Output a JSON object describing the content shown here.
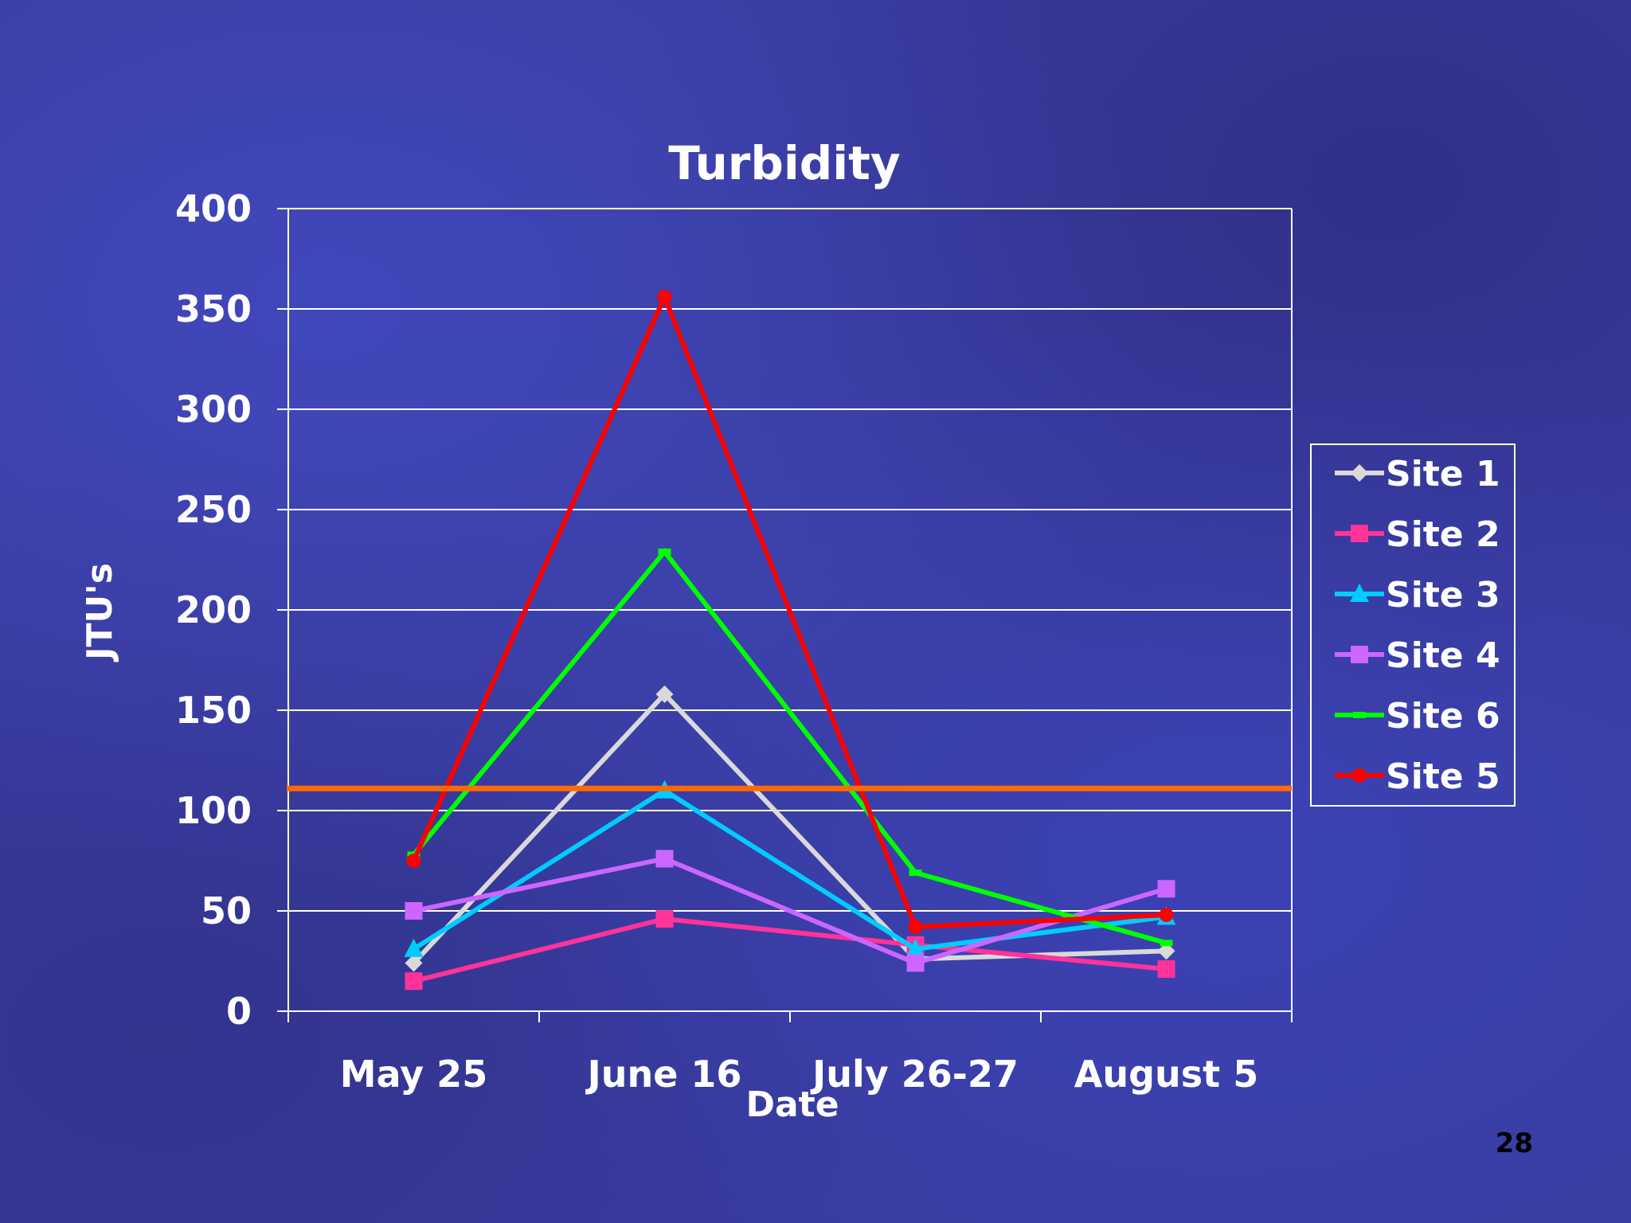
{
  "slide": {
    "page_number": "28"
  },
  "chart_data": {
    "type": "line",
    "title": "Turbidity",
    "xlabel": "Date",
    "ylabel": "JTU's",
    "categories": [
      "May 25",
      "June 16",
      "July 26-27",
      "August 5"
    ],
    "ylim": [
      0,
      400
    ],
    "yticks": [
      0,
      50,
      100,
      150,
      200,
      250,
      300,
      350,
      400
    ],
    "grid": true,
    "legend": "right",
    "reference_line": {
      "value": 111,
      "color": "#ff6a00"
    },
    "series": [
      {
        "name": "Site 1",
        "values": [
          24,
          158,
          26,
          30
        ],
        "color": "#d9d9d9",
        "marker": "diamond"
      },
      {
        "name": "Site 2",
        "values": [
          15,
          46,
          33,
          21
        ],
        "color": "#ff3399",
        "marker": "square"
      },
      {
        "name": "Site 3",
        "values": [
          31,
          110,
          31,
          47
        ],
        "color": "#00ccff",
        "marker": "triangle"
      },
      {
        "name": "Site 4",
        "values": [
          50,
          76,
          24,
          61
        ],
        "color": "#cc66ff",
        "marker": "square"
      },
      {
        "name": "Site 6",
        "values": [
          78,
          229,
          69,
          34
        ],
        "color": "#00ff00",
        "marker": "dash"
      },
      {
        "name": "Site 5",
        "values": [
          75,
          356,
          42,
          48
        ],
        "color": "#ff0000",
        "marker": "circle"
      }
    ]
  }
}
